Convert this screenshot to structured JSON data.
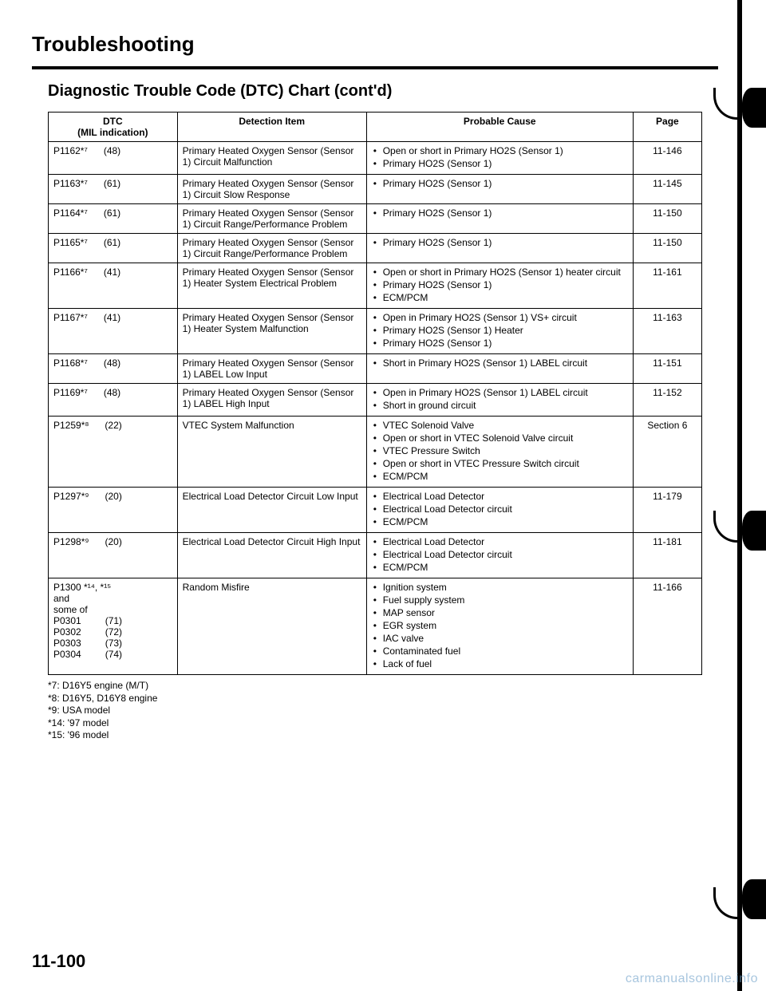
{
  "header": {
    "title": "Troubleshooting",
    "subtitle": "Diagnostic Trouble Code (DTC) Chart (cont'd)"
  },
  "table": {
    "columns": [
      "DTC\n(MIL indication)",
      "Detection Item",
      "Probable Cause",
      "Page"
    ],
    "rows": [
      {
        "dtc": "P1162*⁷      (48)",
        "detection": "Primary Heated Oxygen Sensor (Sensor 1) Circuit Malfunction",
        "causes": [
          "Open or short in Primary HO2S (Sensor 1)",
          "Primary HO2S (Sensor 1)"
        ],
        "page": "11-146"
      },
      {
        "dtc": "P1163*⁷      (61)",
        "detection": "Primary Heated Oxygen Sensor (Sensor 1) Circuit Slow Response",
        "causes": [
          "Primary HO2S (Sensor 1)"
        ],
        "page": "11-145"
      },
      {
        "dtc": "P1164*⁷      (61)",
        "detection": "Primary Heated Oxygen Sensor (Sensor 1) Circuit Range/Performance Problem",
        "causes": [
          "Primary HO2S (Sensor 1)"
        ],
        "page": "11-150"
      },
      {
        "dtc": "P1165*⁷      (61)",
        "detection": "Primary Heated Oxygen Sensor (Sensor 1) Circuit Range/Performance Problem",
        "causes": [
          "Primary HO2S (Sensor 1)"
        ],
        "page": "11-150"
      },
      {
        "dtc": "P1166*⁷      (41)",
        "detection": "Primary Heated Oxygen Sensor (Sensor 1) Heater System Electrical Problem",
        "causes": [
          "Open or short in Primary HO2S (Sensor 1) heater circuit",
          "Primary HO2S (Sensor 1)",
          "ECM/PCM"
        ],
        "page": "11-161"
      },
      {
        "dtc": "P1167*⁷      (41)",
        "detection": "Primary Heated Oxygen Sensor (Sensor 1) Heater System Malfunction",
        "causes": [
          "Open in Primary HO2S (Sensor 1) VS+ circuit",
          "Primary HO2S (Sensor 1) Heater",
          "Primary HO2S (Sensor 1)"
        ],
        "page": "11-163"
      },
      {
        "dtc": "P1168*⁷      (48)",
        "detection": "Primary Heated Oxygen Sensor (Sensor 1) LABEL Low Input",
        "causes": [
          "Short in Primary HO2S (Sensor 1) LABEL circuit"
        ],
        "page": "11-151"
      },
      {
        "dtc": "P1169*⁷      (48)",
        "detection": "Primary Heated Oxygen Sensor (Sensor 1) LABEL High Input",
        "causes": [
          "Open in Primary HO2S (Sensor 1) LABEL circuit",
          "Short in ground circuit"
        ],
        "page": "11-152"
      },
      {
        "dtc": "P1259*⁸      (22)",
        "detection": "VTEC System Malfunction",
        "causes": [
          "VTEC Solenoid Valve",
          "Open or short in VTEC Solenoid Valve circuit",
          "VTEC Pressure Switch",
          "Open or short in VTEC Pressure Switch circuit",
          "ECM/PCM"
        ],
        "page": "Section 6"
      },
      {
        "dtc": "P1297*⁹      (20)",
        "detection": "Electrical Load Detector Circuit Low Input",
        "causes": [
          "Electrical Load Detector",
          "Electrical Load Detector circuit",
          "ECM/PCM"
        ],
        "page": "11-179"
      },
      {
        "dtc": "P1298*⁹      (20)",
        "detection": "Electrical Load Detector Circuit High Input",
        "causes": [
          "Electrical Load Detector",
          "Electrical Load Detector circuit",
          "ECM/PCM"
        ],
        "page": "11-181"
      },
      {
        "dtc": "P1300 *¹⁴, *¹⁵\nand\nsome of\nP0301         (71)\nP0302         (72)\nP0303         (73)\nP0304         (74)",
        "detection": "Random Misfire",
        "causes": [
          "Ignition system",
          "Fuel supply system",
          "MAP sensor",
          "EGR system",
          "IAC valve",
          "Contaminated fuel",
          "Lack of fuel"
        ],
        "page": "11-166"
      }
    ]
  },
  "footnotes": [
    "*7: D16Y5 engine (M/T)",
    "*8: D16Y5, D16Y8 engine",
    "*9: USA model",
    "*14: '97 model",
    "*15: '96 model"
  ],
  "pageNumber": "11-100",
  "watermark": "carmanualsonline.info"
}
